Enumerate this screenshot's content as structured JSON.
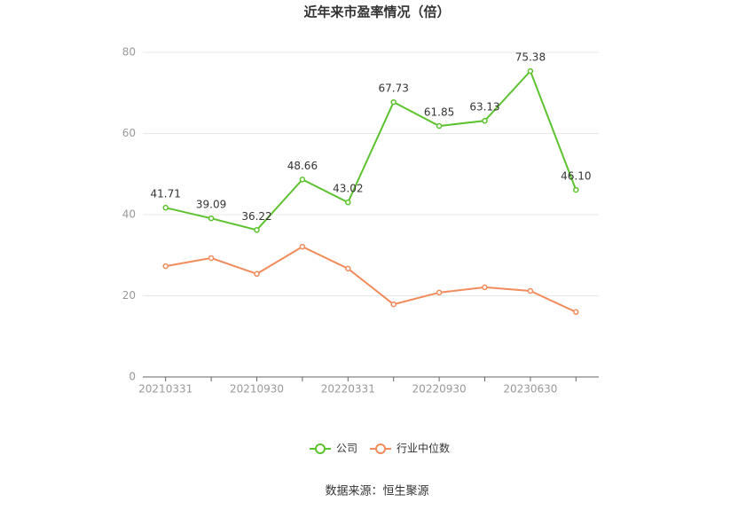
{
  "chart_data": {
    "type": "line",
    "title": "近年来市盈率情况（倍）",
    "categories": [
      "20210331",
      null,
      "20210930",
      null,
      "20220331",
      null,
      "20220930",
      null,
      "20230630",
      null
    ],
    "series": [
      {
        "name": "公司",
        "color": "#5dc22f",
        "values": [
          41.71,
          39.09,
          36.22,
          48.66,
          43.02,
          67.73,
          61.85,
          63.13,
          75.38,
          46.1
        ],
        "value_labels": [
          "41.71",
          "39.09",
          "36.22",
          "48.66",
          "43.02",
          "67.73",
          "61.85",
          "63.13",
          "75.38",
          "46.10"
        ]
      },
      {
        "name": "行业中位数",
        "color": "#f28b5b",
        "values": [
          27.3,
          29.3,
          25.4,
          32.1,
          26.7,
          17.9,
          20.8,
          22.1,
          21.2,
          16.0
        ]
      }
    ],
    "ylim": [
      0,
      80
    ],
    "yticks": [
      0,
      20,
      40,
      60,
      80
    ],
    "grid": true,
    "legend": "bottom",
    "source": "数据来源：恒生聚源"
  }
}
